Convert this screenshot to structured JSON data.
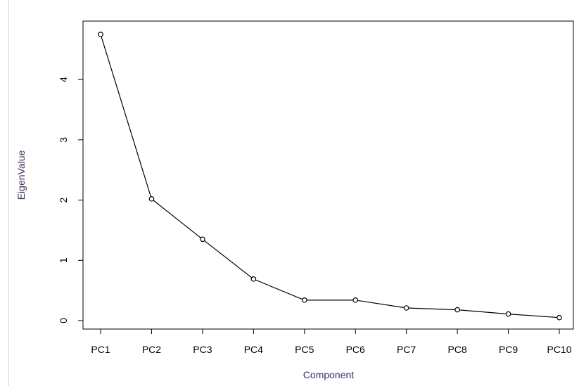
{
  "chart_data": {
    "type": "line",
    "title": "",
    "xlabel": "Component",
    "ylabel": "EigenValue",
    "categories": [
      "PC1",
      "PC2",
      "PC3",
      "PC4",
      "PC5",
      "PC6",
      "PC7",
      "PC8",
      "PC9",
      "PC10"
    ],
    "series": [
      {
        "values": [
          4.75,
          2.02,
          1.35,
          0.69,
          0.34,
          0.34,
          0.21,
          0.18,
          0.11,
          0.05
        ]
      }
    ],
    "yticks": [
      0,
      1,
      2,
      3,
      4
    ],
    "ylim": [
      -0.14,
      4.97
    ],
    "grid": false,
    "legend": "none",
    "marker": "open-circle",
    "colors": {
      "line": "#000000",
      "xlabel": "#3f2f6b",
      "ylabel": "#4a2a5e"
    }
  }
}
